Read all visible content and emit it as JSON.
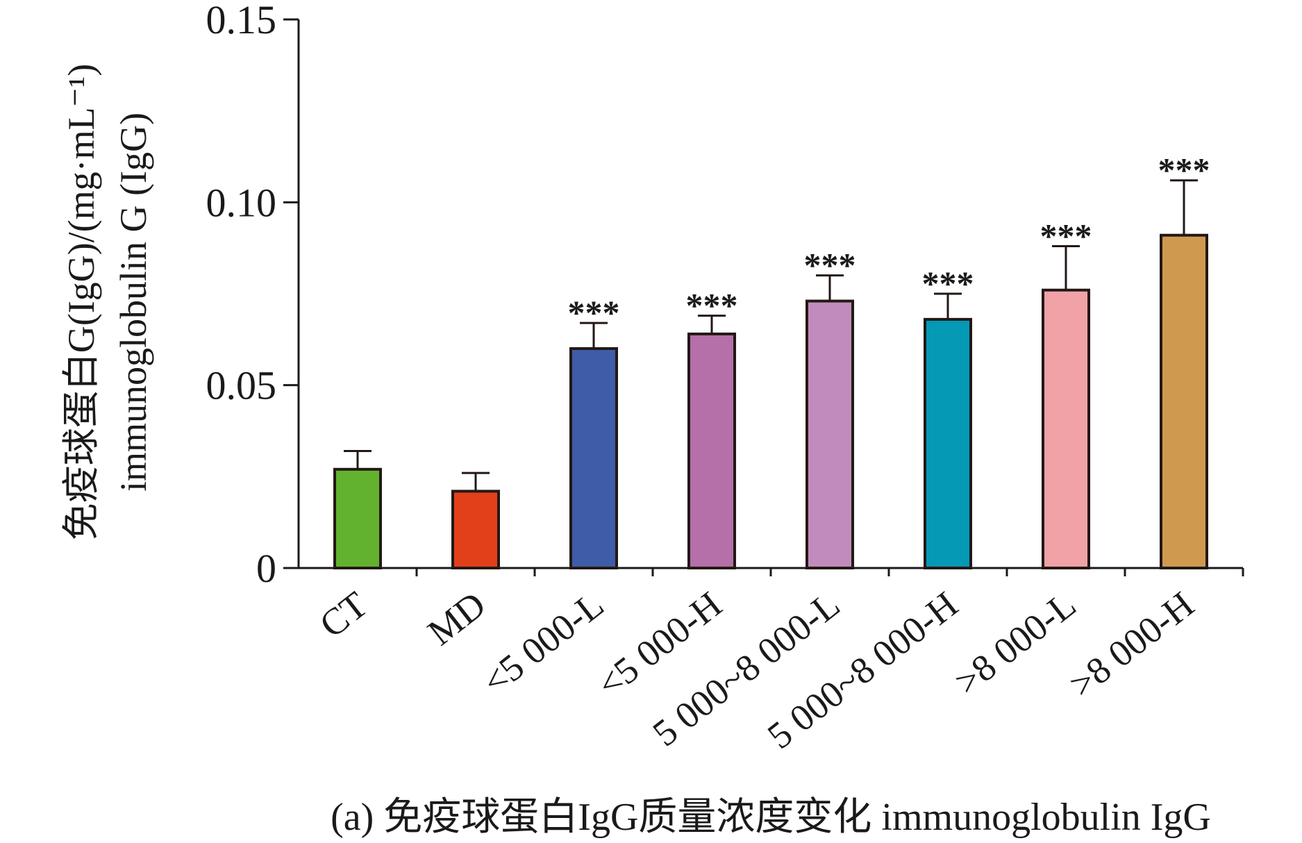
{
  "chart_data": {
    "type": "bar",
    "categories": [
      "CT",
      "MD",
      "<5 000-L",
      "<5 000-H",
      "5 000~8 000-L",
      "5 000~8 000-H",
      ">8 000-L",
      ">8 000-H"
    ],
    "values": [
      0.027,
      0.021,
      0.06,
      0.064,
      0.073,
      0.068,
      0.076,
      0.091
    ],
    "errors": [
      0.005,
      0.005,
      0.007,
      0.005,
      0.007,
      0.007,
      0.012,
      0.015
    ],
    "significance": [
      "",
      "",
      "***",
      "***",
      "***",
      "***",
      "***",
      "***"
    ],
    "colors": [
      "#62b22f",
      "#e2401b",
      "#3f5ca8",
      "#b56fa9",
      "#c28bbd",
      "#0499b5",
      "#f0a2a6",
      "#cf9a4f"
    ],
    "ylim": [
      0,
      0.15
    ],
    "yticks": [
      "0",
      "0.05",
      "0.10",
      "0.15"
    ],
    "ytick_values": [
      0,
      0.05,
      0.1,
      0.15
    ],
    "ylabel_line1": "免疫球蛋白G(IgG)/(mg·mL⁻¹)",
    "ylabel_line2": "immunoglobulin G (IgG)",
    "xlabel": "",
    "grid": false
  },
  "caption": "(a) 免疫球蛋白IgG质量浓度变化 immunoglobulin IgG"
}
